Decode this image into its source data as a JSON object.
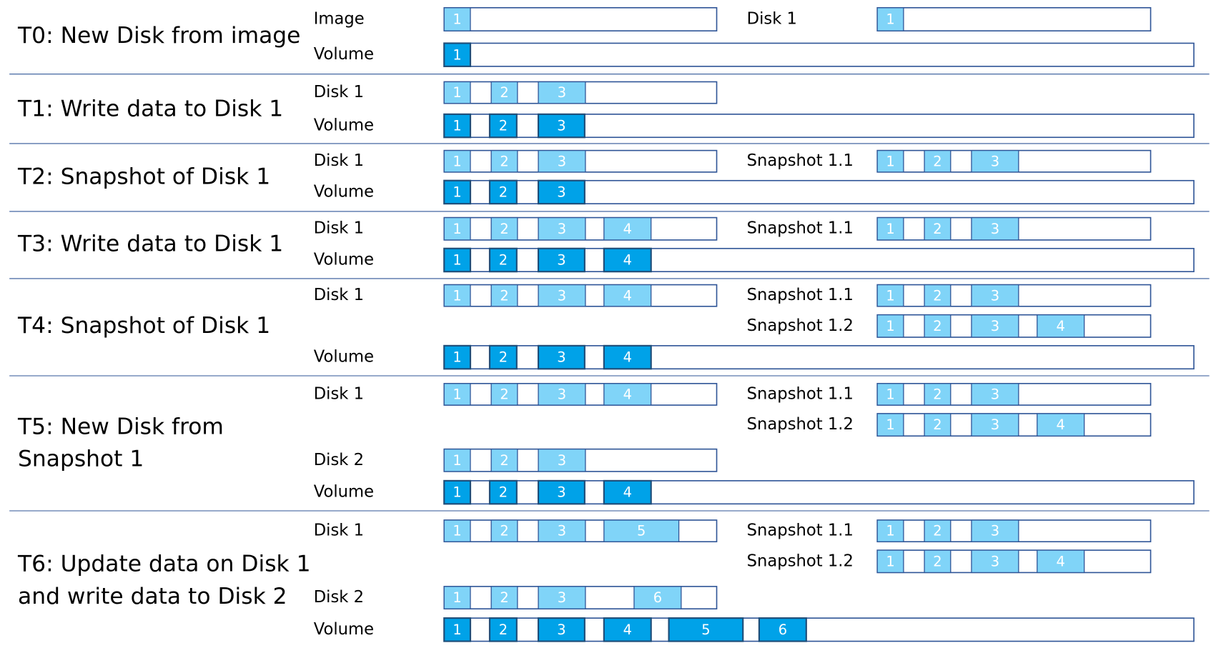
{
  "sections": [
    {
      "title": [
        "T0: New Disk from image"
      ],
      "bars": [
        {
          "label": "Image",
          "blocks": [
            "1"
          ]
        },
        {
          "label": "Disk 1",
          "blocks": [
            "1"
          ]
        },
        {
          "label": "Volume",
          "blocks": [
            "1"
          ]
        }
      ]
    },
    {
      "title": [
        "T1: Write data to Disk 1"
      ],
      "bars": [
        {
          "label": "Disk 1",
          "blocks": [
            "1",
            "2",
            "3"
          ]
        },
        {
          "label": "Volume",
          "blocks": [
            "1",
            "2",
            "3"
          ]
        }
      ]
    },
    {
      "title": [
        "T2: Snapshot of Disk 1"
      ],
      "bars": [
        {
          "label": "Disk 1",
          "blocks": [
            "1",
            "2",
            "3"
          ]
        },
        {
          "label": "Snapshot  1.1",
          "blocks": [
            "1",
            "2",
            "3"
          ]
        },
        {
          "label": "Volume",
          "blocks": [
            "1",
            "2",
            "3"
          ]
        }
      ]
    },
    {
      "title": [
        "T3: Write data to Disk 1"
      ],
      "bars": [
        {
          "label": "Disk 1",
          "blocks": [
            "1",
            "2",
            "3",
            "4"
          ]
        },
        {
          "label": "Snapshot  1.1",
          "blocks": [
            "1",
            "2",
            "3"
          ]
        },
        {
          "label": "Volume",
          "blocks": [
            "1",
            "2",
            "3",
            "4"
          ]
        }
      ]
    },
    {
      "title": [
        "T4: Snapshot of Disk 1"
      ],
      "bars": [
        {
          "label": "Disk 1",
          "blocks": [
            "1",
            "2",
            "3",
            "4"
          ]
        },
        {
          "label": "Snapshot  1.1",
          "blocks": [
            "1",
            "2",
            "3"
          ]
        },
        {
          "label": "Snapshot  1.2",
          "blocks": [
            "1",
            "2",
            "3",
            "4"
          ]
        },
        {
          "label": "Volume",
          "blocks": [
            "1",
            "2",
            "3",
            "4"
          ]
        }
      ]
    },
    {
      "title": [
        "T5: New Disk from",
        "Snapshot 1"
      ],
      "bars": [
        {
          "label": "Disk 1",
          "blocks": [
            "1",
            "2",
            "3",
            "4"
          ]
        },
        {
          "label": "Snapshot  1.1",
          "blocks": [
            "1",
            "2",
            "3"
          ]
        },
        {
          "label": "Snapshot  1.2",
          "blocks": [
            "1",
            "2",
            "3",
            "4"
          ]
        },
        {
          "label": "Disk 2",
          "blocks": [
            "1",
            "2",
            "3"
          ]
        },
        {
          "label": "Volume",
          "blocks": [
            "1",
            "2",
            "3",
            "4"
          ]
        }
      ]
    },
    {
      "title": [
        "T6: Update data on Disk 1",
        "and write data to Disk 2"
      ],
      "bars": [
        {
          "label": "Disk 1",
          "blocks": [
            "1",
            "2",
            "3",
            "5"
          ]
        },
        {
          "label": "Snapshot  1.1",
          "blocks": [
            "1",
            "2",
            "3"
          ]
        },
        {
          "label": "Snapshot  1.2",
          "blocks": [
            "1",
            "2",
            "3",
            "4"
          ]
        },
        {
          "label": "Disk 2",
          "blocks": [
            "1",
            "2",
            "3",
            "6"
          ]
        },
        {
          "label": "Volume",
          "blocks": [
            "1",
            "2",
            "3",
            "4",
            "5",
            "6"
          ]
        }
      ]
    }
  ]
}
